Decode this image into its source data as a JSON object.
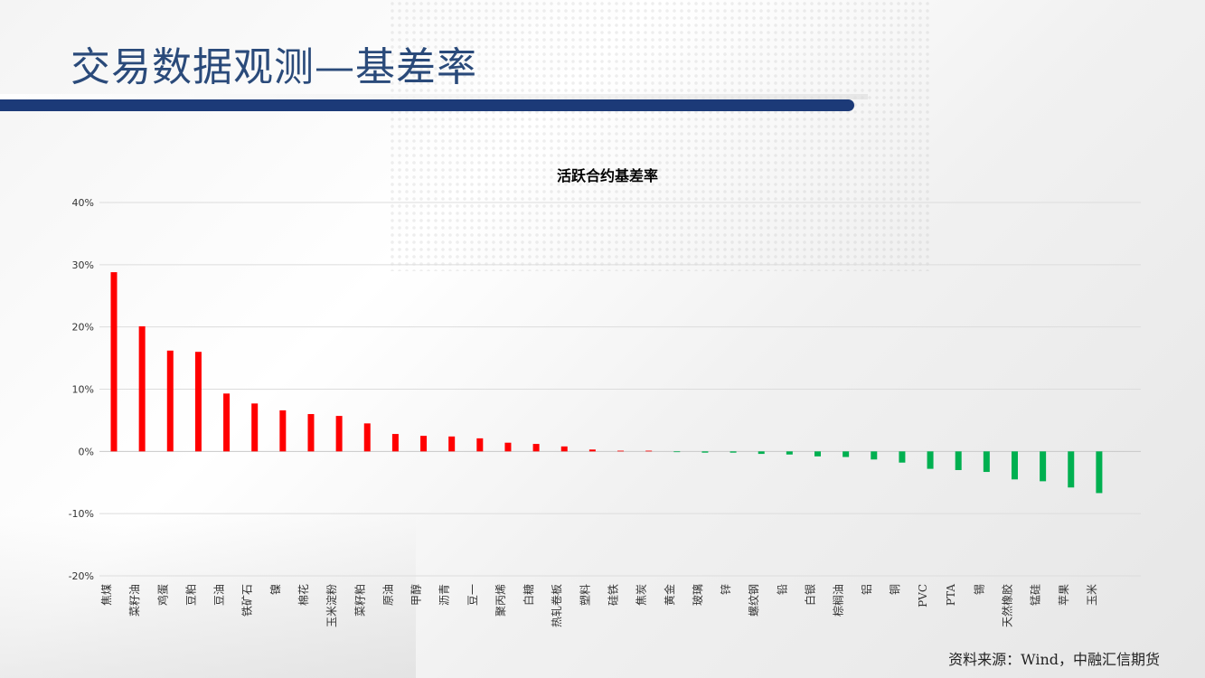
{
  "page": {
    "title": "交易数据观测—基差率",
    "source": "资料来源：Wind，中融汇信期货"
  },
  "colors": {
    "positive": "#ff0000",
    "negative": "#00b050",
    "title_bar": "#1c3a78"
  },
  "chart_data": {
    "type": "bar",
    "title": "活跃合约基差率",
    "xlabel": "",
    "ylabel": "",
    "ylim": [
      -0.2,
      0.4
    ],
    "yticks": [
      0.4,
      0.3,
      0.2,
      0.1,
      0,
      -0.1,
      -0.2
    ],
    "ytick_labels": [
      "40%",
      "30%",
      "20%",
      "10%",
      "0%",
      "-10%",
      "-20%"
    ],
    "grid": true,
    "categories": [
      "焦煤",
      "菜籽油",
      "鸡蛋",
      "豆粕",
      "豆油",
      "铁矿石",
      "镍",
      "棉花",
      "玉米淀粉",
      "菜籽粕",
      "原油",
      "甲醇",
      "沥青",
      "豆一",
      "聚丙烯",
      "白糖",
      "热轧卷板",
      "塑料",
      "硅铁",
      "焦炭",
      "黄金",
      "玻璃",
      "锌",
      "螺纹钢",
      "铅",
      "白银",
      "棕榈油",
      "铝",
      "铜",
      "PVC",
      "PTA",
      "锡",
      "天然橡胶",
      "锰硅",
      "苹果",
      "玉米"
    ],
    "values": [
      0.288,
      0.201,
      0.162,
      0.16,
      0.093,
      0.077,
      0.066,
      0.06,
      0.057,
      0.045,
      0.028,
      0.025,
      0.024,
      0.021,
      0.014,
      0.012,
      0.008,
      0.003,
      0.001,
      0.0,
      -0.001,
      -0.002,
      -0.002,
      -0.004,
      -0.005,
      -0.008,
      -0.009,
      -0.013,
      -0.018,
      -0.028,
      -0.03,
      -0.033,
      -0.045,
      -0.048,
      -0.058,
      -0.067
    ]
  }
}
